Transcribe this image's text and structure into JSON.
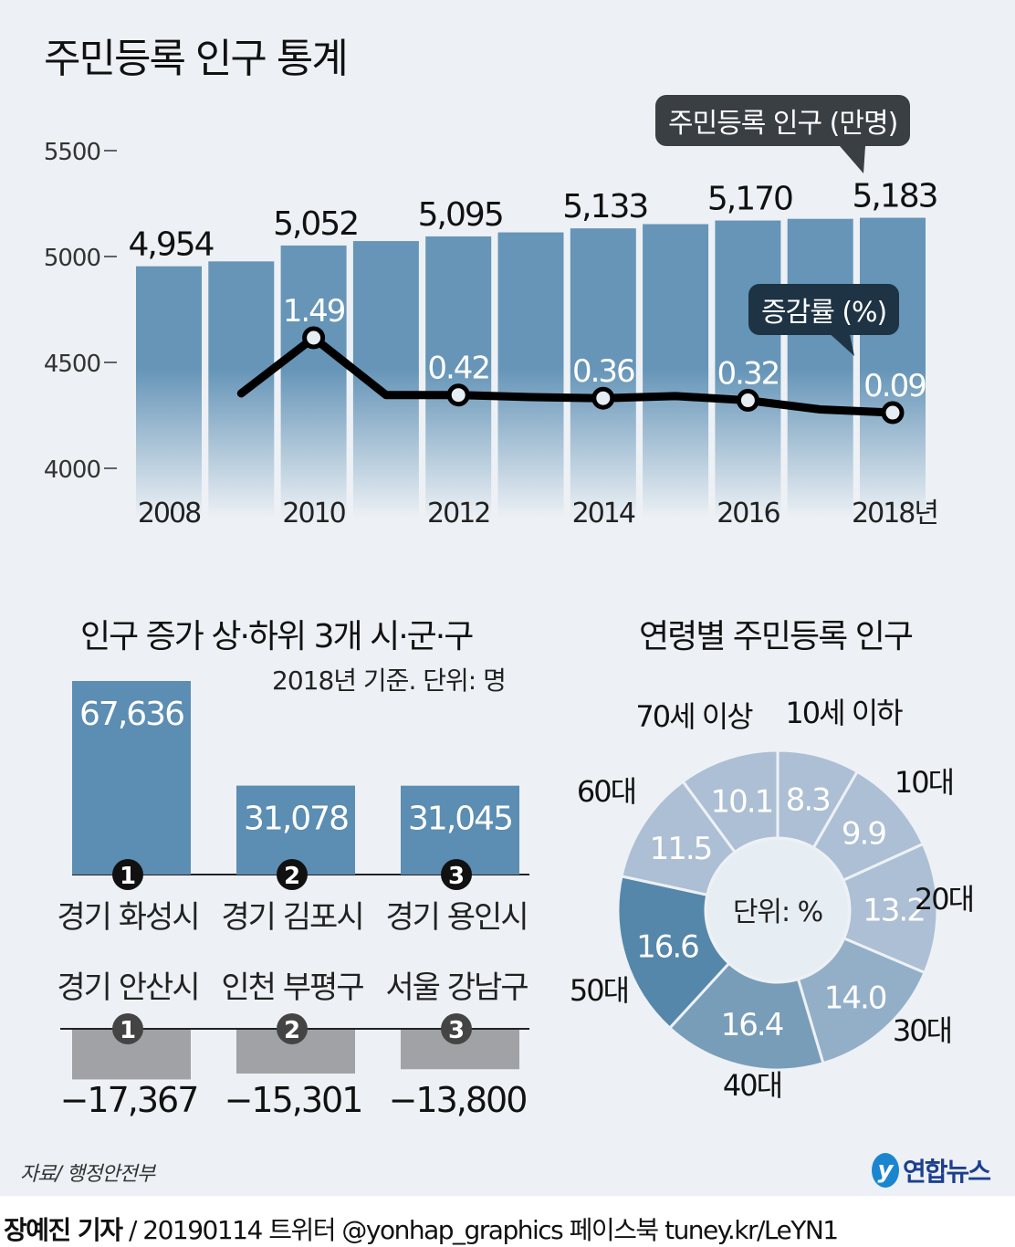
{
  "title": "주민등록 인구 통계",
  "colors": {
    "background": "#edf1f5",
    "bar": "#6695b8",
    "line": "#000000",
    "positive_bar": "#5c8db3",
    "negative_bar": "#a0a2a5"
  },
  "chart_data": [
    {
      "type": "bar+line",
      "categories": [
        "2008",
        "2009",
        "2010",
        "2011",
        "2012",
        "2013",
        "2014",
        "2015",
        "2016",
        "2017",
        "2018"
      ],
      "x_tick_labels": [
        "2008",
        "2010",
        "2012",
        "2014",
        "2016",
        "2018년"
      ],
      "series": [
        {
          "name": "주민등록 인구 (만명)",
          "type": "bar",
          "values": [
            4954,
            4977,
            5052,
            5073,
            5095,
            5114,
            5133,
            5153,
            5170,
            5178,
            5183
          ],
          "labels": [
            "4,954",
            null,
            "5,052",
            null,
            "5,095",
            null,
            "5,133",
            null,
            "5,170",
            null,
            "5,183"
          ]
        },
        {
          "name": "증감률 (%)",
          "type": "line",
          "values": [
            null,
            0.45,
            1.49,
            0.42,
            0.42,
            0.38,
            0.36,
            0.4,
            0.32,
            0.15,
            0.09
          ],
          "labels": [
            null,
            null,
            "1.49",
            null,
            "0.42",
            null,
            "0.36",
            null,
            "0.32",
            null,
            "0.09"
          ]
        }
      ],
      "y_ticks": [
        "5500",
        "5000",
        "4500",
        "4000"
      ],
      "ylim": [
        4000,
        5500
      ]
    },
    {
      "type": "bar",
      "title": "인구 증가 상·하위 3개 시·군·구",
      "subtitle": "2018년 기준. 단위: 명",
      "top": [
        {
          "rank": "1",
          "name": "경기 화성시",
          "value": 67636,
          "label": "67,636"
        },
        {
          "rank": "2",
          "name": "경기 김포시",
          "value": 31078,
          "label": "31,078"
        },
        {
          "rank": "3",
          "name": "경기 용인시",
          "value": 31045,
          "label": "31,045"
        }
      ],
      "bottom": [
        {
          "rank": "1",
          "name": "경기 안산시",
          "value": -17367,
          "label": "−17,367"
        },
        {
          "rank": "2",
          "name": "인천 부평구",
          "value": -15301,
          "label": "−15,301"
        },
        {
          "rank": "3",
          "name": "서울 강남구",
          "value": -13800,
          "label": "−13,800"
        }
      ]
    },
    {
      "type": "pie",
      "title": "연령별 주민등록 인구",
      "center_label": "단위: %",
      "slices": [
        {
          "name": "10세 이하",
          "value": 8.3,
          "label": "8.3",
          "color": "#adbfd4"
        },
        {
          "name": "10대",
          "value": 9.9,
          "label": "9.9",
          "color": "#adbfd4"
        },
        {
          "name": "20대",
          "value": 13.2,
          "label": "13.2",
          "color": "#adbfd4"
        },
        {
          "name": "30대",
          "value": 14.0,
          "label": "14.0",
          "color": "#93afc8"
        },
        {
          "name": "40대",
          "value": 16.4,
          "label": "16.4",
          "color": "#789db9"
        },
        {
          "name": "50대",
          "value": 16.6,
          "label": "16.6",
          "color": "#5587aa"
        },
        {
          "name": "60대",
          "value": 11.5,
          "label": "11.5",
          "color": "#adbfd4"
        },
        {
          "name": "70세 이상",
          "value": 10.1,
          "label": "10.1",
          "color": "#adbfd4"
        }
      ]
    }
  ],
  "footer": {
    "source": "자료/ 행정안전부",
    "logo": "연합뉴스",
    "reporter": "장예진 기자",
    "credit": " / 20190114 트위터 @yonhap_graphics  페이스북 tuney.kr/LeYN1"
  }
}
